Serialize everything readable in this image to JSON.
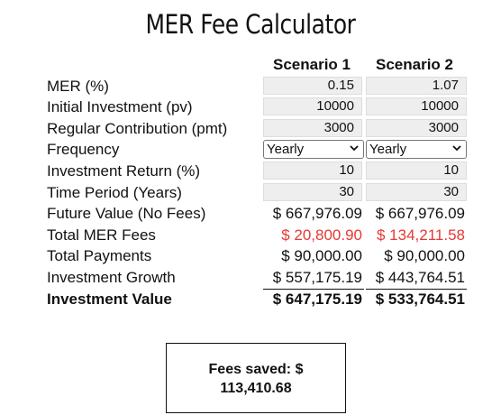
{
  "title": "MER Fee Calculator",
  "columns": {
    "scenario1": "Scenario 1",
    "scenario2": "Scenario 2"
  },
  "rows": {
    "mer": {
      "label": "MER (%)",
      "s1": "0.15",
      "s2": "1.07"
    },
    "pv": {
      "label": "Initial Investment (pv)",
      "s1": "10000",
      "s2": "10000"
    },
    "pmt": {
      "label": "Regular Contribution (pmt)",
      "s1": "3000",
      "s2": "3000"
    },
    "frequency": {
      "label": "Frequency",
      "s1": "Yearly",
      "s2": "Yearly"
    },
    "return": {
      "label": "Investment Return (%)",
      "s1": "10",
      "s2": "10"
    },
    "period": {
      "label": "Time Period (Years)",
      "s1": "30",
      "s2": "30"
    },
    "fv": {
      "label": "Future Value (No Fees)",
      "s1": "$ 667,976.09",
      "s2": "$ 667,976.09"
    },
    "fees": {
      "label": "Total MER Fees",
      "s1": "$ 20,800.90",
      "s2": "$ 134,211.58"
    },
    "payments": {
      "label": "Total Payments",
      "s1": "$ 90,000.00",
      "s2": "$ 90,000.00"
    },
    "growth": {
      "label": "Investment Growth",
      "s1": "$ 557,175.19",
      "s2": "$ 443,764.51"
    },
    "value": {
      "label": "Investment Value",
      "s1": "$ 647,175.19",
      "s2": "$ 533,764.51"
    }
  },
  "summary": {
    "line1": "Fees saved: $",
    "line2": "113,410.68"
  },
  "colors": {
    "fees_text": "#e53935",
    "input_bg": "#eeeeee"
  },
  "icons": {
    "select_chevron": "chevron-down-icon"
  }
}
